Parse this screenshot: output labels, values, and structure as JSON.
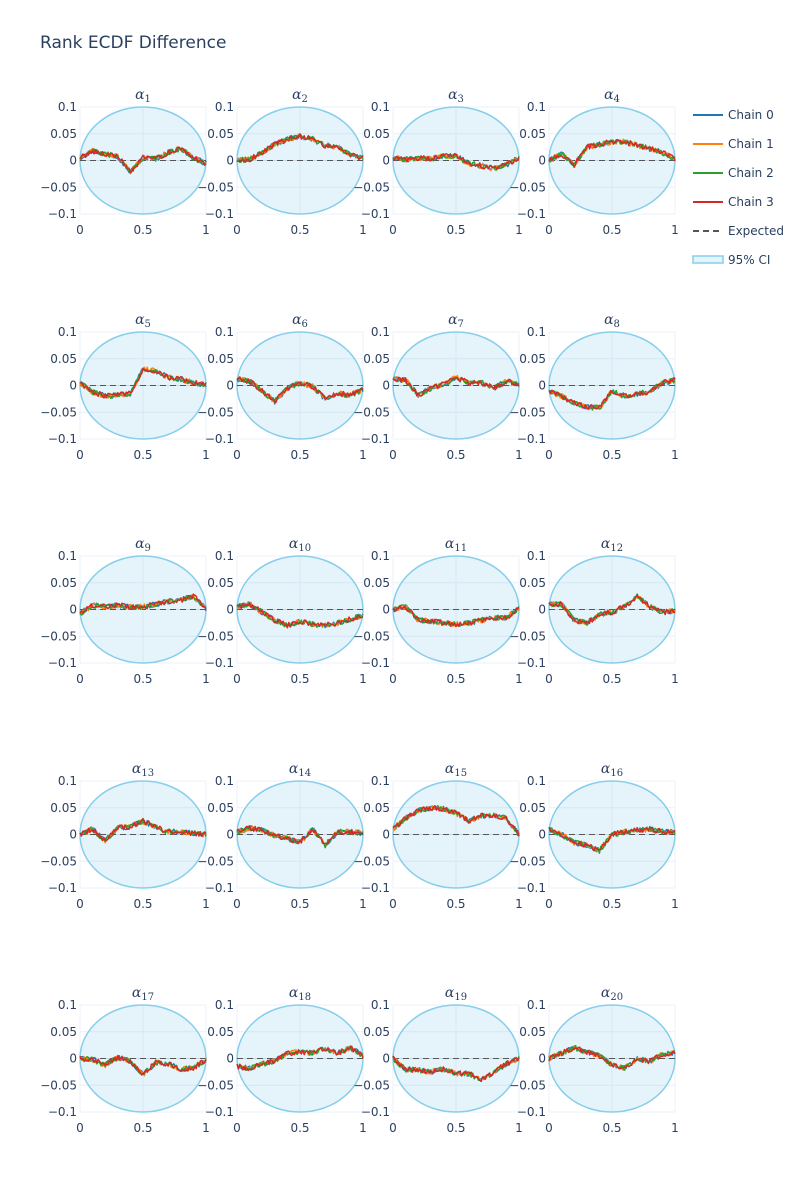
{
  "title": "Rank ECDF Difference",
  "colors": {
    "chart_text": "#2a3f5f",
    "grid": "#ebf0f8",
    "zeroline": "#d5dbe5",
    "ci_fill": "rgba(135,206,235,0.22)",
    "ci_line": "#87ceeb",
    "expected": "#555555"
  },
  "legend": [
    {
      "label": "Chain 0",
      "color": "#1f77b4",
      "style": "solid"
    },
    {
      "label": "Chain 1",
      "color": "#ff7f0e",
      "style": "solid"
    },
    {
      "label": "Chain 2",
      "color": "#2ca02c",
      "style": "solid"
    },
    {
      "label": "Chain 3",
      "color": "#d62728",
      "style": "solid"
    },
    {
      "label": "Expected",
      "color": "#555555",
      "style": "dash"
    },
    {
      "label": "95% CI",
      "color": "#87ceeb",
      "style": "band"
    }
  ],
  "chart_data": {
    "type": "line",
    "title": "Rank ECDF Difference",
    "x_range": [
      0,
      1
    ],
    "y_range": [
      -0.1,
      0.1
    ],
    "x_ticks": [
      {
        "v": 0,
        "t": "0"
      },
      {
        "v": 0.5,
        "t": "0.5"
      },
      {
        "v": 1,
        "t": "1"
      }
    ],
    "y_ticks": [
      {
        "v": 0.1,
        "t": "0.1"
      },
      {
        "v": 0.05,
        "t": "0.05"
      },
      {
        "v": 0,
        "t": "0"
      },
      {
        "v": -0.05,
        "t": "−0.05"
      },
      {
        "v": -0.1,
        "t": "−0.1"
      }
    ],
    "grid": true,
    "legend_position": "right",
    "series_names": [
      "Chain 0",
      "Chain 1",
      "Chain 2",
      "Chain 3"
    ],
    "expected_value": 0,
    "ci_band": "95% CI",
    "x": [
      0,
      0.1,
      0.2,
      0.3,
      0.4,
      0.5,
      0.6,
      0.7,
      0.8,
      0.9,
      1.0
    ],
    "panels": [
      {
        "title": "α",
        "sub": "1",
        "curve": [
          0.005,
          0.018,
          0.012,
          0.008,
          -0.022,
          0.005,
          0.003,
          0.015,
          0.022,
          0.005,
          -0.005
        ]
      },
      {
        "title": "α",
        "sub": "2",
        "curve": [
          0.0,
          0.002,
          0.015,
          0.03,
          0.04,
          0.045,
          0.04,
          0.028,
          0.025,
          0.01,
          0.005
        ]
      },
      {
        "title": "α",
        "sub": "3",
        "curve": [
          0.005,
          0.002,
          0.005,
          0.003,
          0.008,
          0.008,
          -0.005,
          -0.01,
          -0.015,
          -0.008,
          0.005
        ]
      },
      {
        "title": "α",
        "sub": "4",
        "curve": [
          0.0,
          0.012,
          -0.008,
          0.025,
          0.03,
          0.035,
          0.035,
          0.028,
          0.022,
          0.015,
          0.002
        ]
      },
      {
        "title": "α",
        "sub": "5",
        "curve": [
          0.005,
          -0.012,
          -0.02,
          -0.018,
          -0.015,
          0.03,
          0.028,
          0.015,
          0.012,
          0.005,
          0.002
        ]
      },
      {
        "title": "α",
        "sub": "6",
        "curve": [
          0.012,
          0.008,
          -0.01,
          -0.03,
          -0.005,
          0.005,
          -0.002,
          -0.025,
          -0.015,
          -0.018,
          -0.008
        ]
      },
      {
        "title": "α",
        "sub": "7",
        "curve": [
          0.012,
          0.01,
          -0.018,
          -0.005,
          0.002,
          0.015,
          0.005,
          0.005,
          -0.005,
          0.008,
          0.002
        ]
      },
      {
        "title": "α",
        "sub": "8",
        "curve": [
          -0.01,
          -0.02,
          -0.032,
          -0.04,
          -0.042,
          -0.01,
          -0.02,
          -0.015,
          -0.012,
          0.005,
          0.01
        ]
      },
      {
        "title": "α",
        "sub": "9",
        "curve": [
          -0.008,
          0.008,
          0.005,
          0.008,
          0.005,
          0.005,
          0.01,
          0.015,
          0.018,
          0.025,
          0.002
        ]
      },
      {
        "title": "α",
        "sub": "10",
        "curve": [
          0.005,
          0.01,
          -0.005,
          -0.02,
          -0.03,
          -0.022,
          -0.028,
          -0.03,
          -0.025,
          -0.018,
          -0.01
        ]
      },
      {
        "title": "α",
        "sub": "11",
        "curve": [
          0.0,
          0.005,
          -0.02,
          -0.022,
          -0.025,
          -0.028,
          -0.025,
          -0.02,
          -0.015,
          -0.015,
          0.002
        ]
      },
      {
        "title": "α",
        "sub": "12",
        "curve": [
          0.01,
          0.01,
          -0.02,
          -0.025,
          -0.01,
          -0.005,
          0.005,
          0.025,
          0.005,
          -0.005,
          -0.003
        ]
      },
      {
        "title": "α",
        "sub": "13",
        "curve": [
          0.0,
          0.01,
          -0.012,
          0.012,
          0.015,
          0.025,
          0.015,
          0.005,
          0.005,
          0.003,
          0.0
        ]
      },
      {
        "title": "α",
        "sub": "14",
        "curve": [
          0.005,
          0.012,
          0.008,
          -0.002,
          -0.008,
          -0.015,
          0.01,
          -0.02,
          0.005,
          0.005,
          0.002
        ]
      },
      {
        "title": "α",
        "sub": "15",
        "curve": [
          0.01,
          0.03,
          0.045,
          0.05,
          0.048,
          0.04,
          0.025,
          0.035,
          0.035,
          0.03,
          0.0
        ]
      },
      {
        "title": "α",
        "sub": "16",
        "curve": [
          0.01,
          0.0,
          -0.015,
          -0.02,
          -0.03,
          0.0,
          0.005,
          0.008,
          0.01,
          0.005,
          0.005
        ]
      },
      {
        "title": "α",
        "sub": "17",
        "curve": [
          0.0,
          -0.002,
          -0.012,
          0.002,
          -0.005,
          -0.03,
          -0.008,
          -0.01,
          -0.02,
          -0.018,
          -0.002
        ]
      },
      {
        "title": "α",
        "sub": "18",
        "curve": [
          -0.015,
          -0.018,
          -0.01,
          -0.005,
          0.01,
          0.012,
          0.01,
          0.018,
          0.01,
          0.02,
          0.005
        ]
      },
      {
        "title": "α",
        "sub": "19",
        "curve": [
          0.0,
          -0.02,
          -0.022,
          -0.025,
          -0.02,
          -0.028,
          -0.028,
          -0.04,
          -0.025,
          -0.01,
          0.0
        ]
      },
      {
        "title": "α",
        "sub": "20",
        "curve": [
          0.0,
          0.01,
          0.02,
          0.012,
          0.005,
          -0.012,
          -0.018,
          0.0,
          -0.005,
          0.008,
          0.01
        ]
      }
    ]
  }
}
